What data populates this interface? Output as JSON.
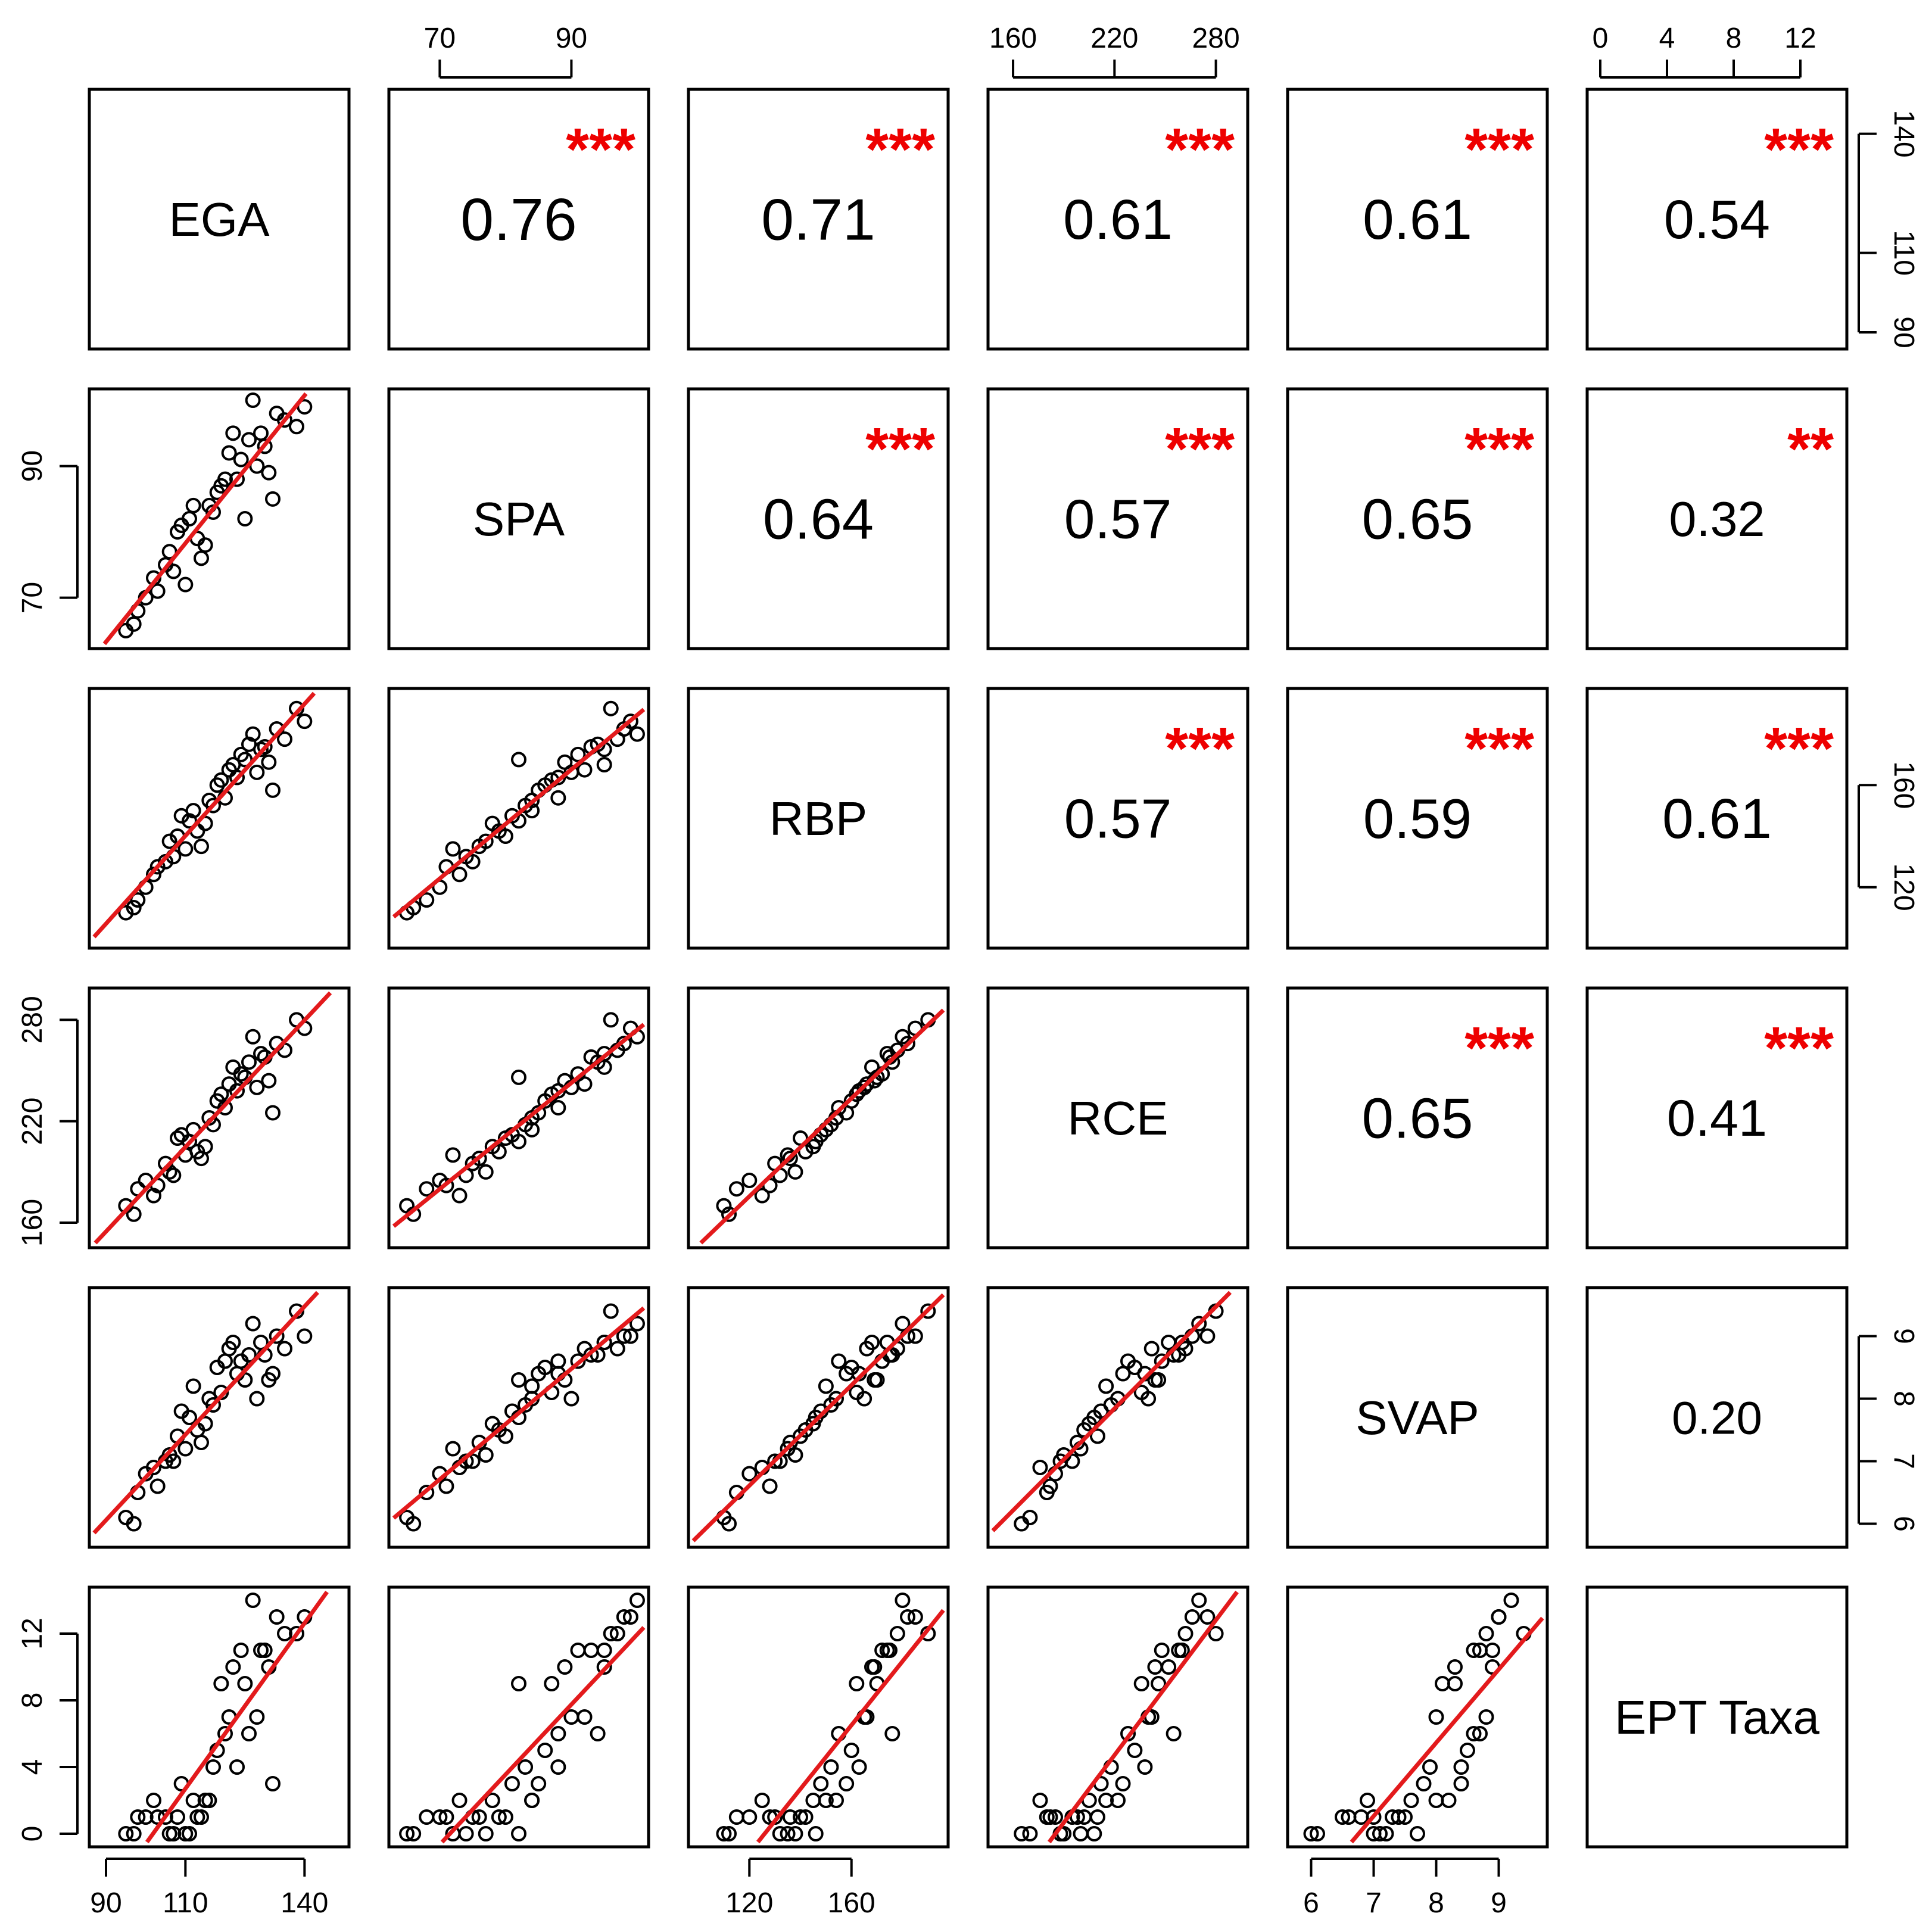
{
  "colors": {
    "points": "#000000",
    "fit_line": "#e31a1c",
    "stars": "#ee0000",
    "frame": "#000000"
  },
  "chart_data": {
    "type": "scatter",
    "variables": [
      {
        "name": "EGA",
        "range": [
          87,
          150
        ],
        "ticks": [
          90,
          110,
          140
        ]
      },
      {
        "name": "SPA",
        "range": [
          63,
          101
        ],
        "ticks": [
          70,
          90
        ]
      },
      {
        "name": "RBP",
        "range": [
          98,
          196
        ],
        "ticks": [
          120,
          160
        ]
      },
      {
        "name": "RCE",
        "range": [
          148,
          296
        ],
        "ticks": [
          160,
          220,
          280
        ]
      },
      {
        "name": "SVAP",
        "range": [
          5.7,
          9.7
        ],
        "ticks": [
          6,
          7,
          8,
          9
        ]
      },
      {
        "name": "EPT Taxa",
        "range": [
          -0.5,
          14.5
        ],
        "ticks": [
          0,
          4,
          8,
          12
        ]
      }
    ],
    "correlations": [
      {
        "row": 0,
        "col": 1,
        "r": "0.76",
        "stars": "***"
      },
      {
        "row": 0,
        "col": 2,
        "r": "0.71",
        "stars": "***"
      },
      {
        "row": 0,
        "col": 3,
        "r": "0.61",
        "stars": "***"
      },
      {
        "row": 0,
        "col": 4,
        "r": "0.61",
        "stars": "***"
      },
      {
        "row": 0,
        "col": 5,
        "r": "0.54",
        "stars": "***"
      },
      {
        "row": 1,
        "col": 2,
        "r": "0.64",
        "stars": "***"
      },
      {
        "row": 1,
        "col": 3,
        "r": "0.57",
        "stars": "***"
      },
      {
        "row": 1,
        "col": 4,
        "r": "0.65",
        "stars": "***"
      },
      {
        "row": 1,
        "col": 5,
        "r": "0.32",
        "stars": "**"
      },
      {
        "row": 2,
        "col": 3,
        "r": "0.57",
        "stars": "***"
      },
      {
        "row": 2,
        "col": 4,
        "r": "0.59",
        "stars": "***"
      },
      {
        "row": 2,
        "col": 5,
        "r": "0.61",
        "stars": "***"
      },
      {
        "row": 3,
        "col": 4,
        "r": "0.65",
        "stars": "***"
      },
      {
        "row": 3,
        "col": 5,
        "r": "0.41",
        "stars": "***"
      },
      {
        "row": 4,
        "col": 5,
        "r": "0.20",
        "stars": ""
      }
    ],
    "observations": [
      [
        120,
        88,
        155,
        228,
        8.6,
        6
      ],
      [
        125,
        82,
        170,
        246,
        8.3,
        9
      ],
      [
        130,
        93,
        175,
        258,
        8.7,
        11
      ],
      [
        108,
        80,
        140,
        210,
        7.4,
        1
      ],
      [
        112,
        84,
        150,
        215,
        8.2,
        2
      ],
      [
        100,
        70,
        120,
        185,
        6.8,
        1
      ],
      [
        95,
        65,
        110,
        170,
        6.1,
        0
      ],
      [
        140,
        99,
        185,
        275,
        9.0,
        13
      ],
      [
        135,
        97,
        178,
        262,
        8.8,
        12
      ],
      [
        128,
        90,
        165,
        240,
        8.0,
        7
      ],
      [
        118,
        86,
        160,
        232,
        8.5,
        5
      ],
      [
        105,
        75,
        130,
        195,
        7.0,
        1
      ],
      [
        115,
        78,
        145,
        205,
        7.6,
        2
      ],
      [
        122,
        95,
        168,
        252,
        8.9,
        10
      ],
      [
        110,
        72,
        135,
        200,
        7.2,
        0
      ],
      [
        132,
        85,
        158,
        225,
        8.4,
        3
      ],
      [
        98,
        68,
        115,
        180,
        6.5,
        1
      ],
      [
        127,
        100,
        180,
        270,
        9.2,
        14
      ],
      [
        117,
        83,
        152,
        218,
        7.9,
        4
      ],
      [
        106,
        77,
        138,
        190,
        7.1,
        0
      ],
      [
        124,
        91,
        172,
        248,
        8.6,
        11
      ],
      [
        113,
        79,
        142,
        202,
        7.5,
        1
      ],
      [
        138,
        96,
        190,
        280,
        9.4,
        12
      ],
      [
        102,
        73,
        125,
        176,
        6.9,
        2
      ],
      [
        119,
        87,
        162,
        236,
        8.1,
        9
      ],
      [
        109,
        81,
        148,
        212,
        7.8,
        3
      ],
      [
        126,
        94,
        176,
        255,
        8.7,
        6
      ],
      [
        97,
        66,
        112,
        165,
        6.0,
        0
      ],
      [
        131,
        89,
        169,
        244,
        8.3,
        10
      ],
      [
        114,
        76,
        136,
        198,
        7.3,
        1
      ],
      [
        121,
        92,
        166,
        242,
        8.8,
        7
      ],
      [
        107,
        74,
        132,
        188,
        7.0,
        0
      ],
      [
        133,
        98,
        182,
        266,
        9.0,
        13
      ],
      [
        116,
        84,
        154,
        222,
        8.0,
        2
      ],
      [
        103,
        71,
        128,
        182,
        6.6,
        1
      ],
      [
        123,
        88,
        163,
        238,
        8.4,
        4
      ],
      [
        111,
        82,
        146,
        208,
        7.7,
        0
      ],
      [
        129,
        95,
        174,
        260,
        8.9,
        11
      ]
    ]
  }
}
